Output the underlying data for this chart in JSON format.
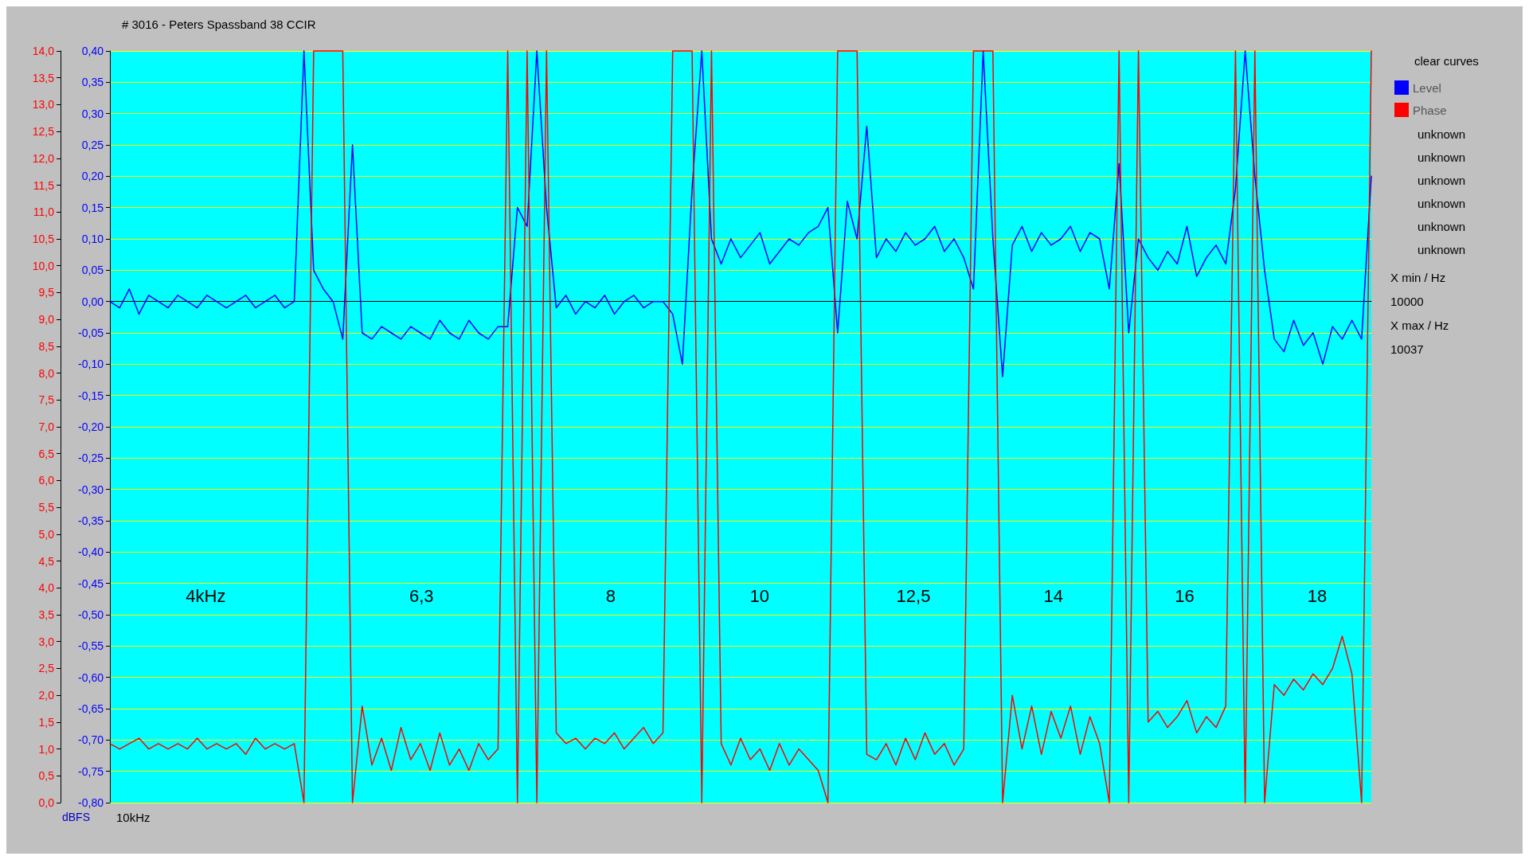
{
  "chart_data": {
    "type": "line",
    "title": "# 3016 - Peters Spassband 38 CCIR",
    "ylabel": "dBFS",
    "categories": [
      null,
      null,
      null,
      null,
      null,
      null,
      null,
      null,
      null,
      null,
      null,
      null,
      null,
      null,
      null,
      null,
      null,
      null,
      null,
      null,
      null,
      null,
      null,
      null,
      null,
      null,
      null,
      null,
      null,
      null,
      null,
      null,
      null,
      null,
      null,
      null,
      null,
      null,
      null,
      null,
      null,
      null,
      null,
      null,
      null,
      null,
      null,
      null,
      null,
      null,
      null,
      null,
      null,
      null,
      null,
      null,
      null,
      null,
      null,
      null,
      null,
      null,
      null,
      null,
      null,
      null,
      null,
      null,
      null,
      null,
      null,
      null,
      null,
      null,
      null,
      null,
      null,
      null,
      null,
      null,
      null,
      null,
      null,
      null,
      null,
      null,
      null,
      null,
      null,
      null,
      null,
      null,
      null,
      null,
      null,
      null,
      null,
      null,
      null,
      null,
      null,
      null,
      null,
      null,
      null,
      null,
      null,
      null,
      null,
      null,
      null,
      null,
      null,
      null,
      null,
      null,
      null,
      null,
      null,
      null,
      null,
      null,
      null,
      null,
      null,
      null,
      null,
      null,
      null,
      null,
      null
    ],
    "series": [
      {
        "name": "Level",
        "color": "#0000ff",
        "values": [
          0.0,
          -0.01,
          0.02,
          -0.02,
          0.01,
          0.0,
          -0.01,
          0.01,
          0.0,
          -0.01,
          0.01,
          0.0,
          -0.01,
          0.0,
          0.01,
          -0.01,
          0.0,
          0.01,
          -0.01,
          0.0,
          0.4,
          0.05,
          0.02,
          0.0,
          -0.06,
          0.25,
          -0.05,
          -0.06,
          -0.04,
          -0.05,
          -0.06,
          -0.04,
          -0.05,
          -0.06,
          -0.03,
          -0.05,
          -0.06,
          -0.03,
          -0.05,
          -0.06,
          -0.04,
          -0.04,
          0.15,
          0.12,
          0.4,
          0.15,
          -0.01,
          0.01,
          -0.02,
          0.0,
          -0.01,
          0.01,
          -0.02,
          0.0,
          0.01,
          -0.01,
          0.0,
          0.0,
          -0.02,
          -0.1,
          0.18,
          0.4,
          0.1,
          0.06,
          0.1,
          0.07,
          0.09,
          0.11,
          0.06,
          0.08,
          0.1,
          0.09,
          0.11,
          0.12,
          0.15,
          -0.05,
          0.16,
          0.1,
          0.28,
          0.07,
          0.1,
          0.08,
          0.11,
          0.09,
          0.1,
          0.12,
          0.08,
          0.1,
          0.07,
          0.02,
          0.4,
          0.1,
          -0.12,
          0.09,
          0.12,
          0.08,
          0.11,
          0.09,
          0.1,
          0.12,
          0.08,
          0.11,
          0.1,
          0.02,
          0.22,
          -0.05,
          0.1,
          0.07,
          0.05,
          0.08,
          0.06,
          0.12,
          0.04,
          0.07,
          0.09,
          0.06,
          0.18,
          0.4,
          0.2,
          0.05,
          -0.06,
          -0.08,
          -0.03,
          -0.07,
          -0.05,
          -0.1,
          -0.04,
          -0.06,
          -0.03,
          -0.06,
          0.2
        ]
      },
      {
        "name": "Phase",
        "color": "#ff0000",
        "axis": "y2",
        "values": [
          1.1,
          1.0,
          1.1,
          1.2,
          1.0,
          1.1,
          1.0,
          1.1,
          1.0,
          1.2,
          1.0,
          1.1,
          1.0,
          1.1,
          0.9,
          1.2,
          1.0,
          1.1,
          1.0,
          1.1,
          0,
          14,
          14,
          14,
          14,
          0,
          1.8,
          0.7,
          1.2,
          0.6,
          1.4,
          0.8,
          1.1,
          0.6,
          1.3,
          0.7,
          1.0,
          0.6,
          1.1,
          0.8,
          1.0,
          14,
          0,
          14,
          0,
          14,
          1.3,
          1.1,
          1.2,
          1.0,
          1.2,
          1.1,
          1.3,
          1.0,
          1.2,
          1.4,
          1.1,
          1.3,
          14,
          14,
          14,
          0,
          14,
          1.1,
          0.7,
          1.2,
          0.8,
          1.0,
          0.6,
          1.1,
          0.7,
          1.0,
          0.8,
          0.6,
          0,
          14,
          14,
          14,
          0.9,
          0.8,
          1.1,
          0.7,
          1.2,
          0.8,
          1.3,
          0.9,
          1.1,
          0.7,
          1.0,
          14,
          14,
          14,
          0,
          2.0,
          1.0,
          1.8,
          0.9,
          1.7,
          1.2,
          1.8,
          0.9,
          1.6,
          1.1,
          0,
          14,
          0,
          14,
          1.5,
          1.7,
          1.4,
          1.6,
          1.9,
          1.3,
          1.6,
          1.4,
          1.8,
          14,
          0,
          14,
          0,
          2.2,
          2.0,
          2.3,
          2.1,
          2.4,
          2.2,
          2.5,
          3.1,
          2.4,
          0,
          14
        ]
      }
    ],
    "ylim": [
      -0.8,
      0.4
    ],
    "yticks": [
      {
        "value": 0.4,
        "label": "0,40"
      },
      {
        "value": 0.35,
        "label": "0,35"
      },
      {
        "value": 0.3,
        "label": "0,30"
      },
      {
        "value": 0.25,
        "label": "0,25"
      },
      {
        "value": 0.2,
        "label": "0,20"
      },
      {
        "value": 0.15,
        "label": "0,15"
      },
      {
        "value": 0.1,
        "label": "0,10"
      },
      {
        "value": 0.05,
        "label": "0,05"
      },
      {
        "value": 0,
        "label": "0,00"
      },
      {
        "value": -0.05,
        "label": "-0,05"
      },
      {
        "value": -0.1,
        "label": "-0,10"
      },
      {
        "value": -0.15,
        "label": "-0,15"
      },
      {
        "value": -0.2,
        "label": "-0,20"
      },
      {
        "value": -0.25,
        "label": "-0,25"
      },
      {
        "value": -0.3,
        "label": "-0,30"
      },
      {
        "value": -0.35,
        "label": "-0,35"
      },
      {
        "value": -0.4,
        "label": "-0,40"
      },
      {
        "value": -0.45,
        "label": "-0,45"
      },
      {
        "value": -0.5,
        "label": "-0,50"
      },
      {
        "value": -0.55,
        "label": "-0,55"
      },
      {
        "value": -0.6,
        "label": "-0,60"
      },
      {
        "value": -0.65,
        "label": "-0,65"
      },
      {
        "value": -0.7,
        "label": "-0,70"
      },
      {
        "value": -0.75,
        "label": "-0,75"
      },
      {
        "value": -0.8,
        "label": "-0,80"
      }
    ],
    "y2lim": [
      0,
      14
    ],
    "y2ticks": [
      {
        "value": 14,
        "label": "14,0"
      },
      {
        "value": 13.5,
        "label": "13,5"
      },
      {
        "value": 13,
        "label": "13,0"
      },
      {
        "value": 12.5,
        "label": "12,5"
      },
      {
        "value": 12,
        "label": "12,0"
      },
      {
        "value": 11.5,
        "label": "11,5"
      },
      {
        "value": 11,
        "label": "11,0"
      },
      {
        "value": 10.5,
        "label": "10,5"
      },
      {
        "value": 10,
        "label": "10,0"
      },
      {
        "value": 9.5,
        "label": "9,5"
      },
      {
        "value": 9,
        "label": "9,0"
      },
      {
        "value": 8.5,
        "label": "8,5"
      },
      {
        "value": 8,
        "label": "8,0"
      },
      {
        "value": 7.5,
        "label": "7,5"
      },
      {
        "value": 7,
        "label": "7,0"
      },
      {
        "value": 6.5,
        "label": "6,5"
      },
      {
        "value": 6,
        "label": "6,0"
      },
      {
        "value": 5.5,
        "label": "5,5"
      },
      {
        "value": 5,
        "label": "5,0"
      },
      {
        "value": 4.5,
        "label": "4,5"
      },
      {
        "value": 4,
        "label": "4,0"
      },
      {
        "value": 3.5,
        "label": "3,5"
      },
      {
        "value": 3,
        "label": "3,0"
      },
      {
        "value": 2.5,
        "label": "2,5"
      },
      {
        "value": 2,
        "label": "2,0"
      },
      {
        "value": 1.5,
        "label": "1,5"
      },
      {
        "value": 1,
        "label": "1,0"
      },
      {
        "value": 0.5,
        "label": "0,5"
      },
      {
        "value": 0,
        "label": "0,0"
      }
    ],
    "grid": "y",
    "legend": "top right",
    "tick_labels": "y",
    "annotations": [
      "4kHz",
      "6,3",
      "8",
      "10",
      "12,5",
      "14",
      "16",
      "18",
      "10kHz",
      "clear curves",
      "unknown",
      "unknown",
      "unknown",
      "unknown",
      "unknown",
      "unknown",
      "X min / Hz",
      "10000",
      "X max / Hz",
      "10037"
    ]
  }
}
